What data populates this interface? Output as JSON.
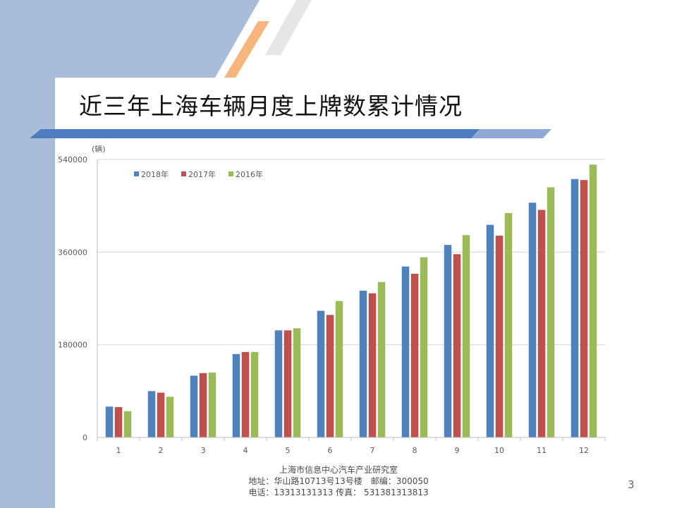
{
  "slide": {
    "title": "近三年上海车辆月度上牌数累计情况",
    "footer": {
      "org": "上海市信息中心汽车产业研究室",
      "address": "地址：华山路10713号13号楼　邮编：300050",
      "contact": "电话：13313131313  传真： 531381313813"
    },
    "page_number": "3"
  },
  "colors": {
    "band": "#a9bcd9",
    "stripe_dark": "#4f7bbf",
    "stripe_light": "#8fa9d6",
    "accent_orange": "#f7b57c",
    "accent_gray": "#e6e6e6"
  },
  "chart_data": {
    "type": "bar",
    "unit_label": "(辆)",
    "categories": [
      "1",
      "2",
      "3",
      "4",
      "5",
      "6",
      "7",
      "8",
      "9",
      "10",
      "11",
      "12"
    ],
    "series": [
      {
        "name": "2018年",
        "color": "#4f81bd",
        "values": [
          60000,
          90000,
          120000,
          162000,
          208000,
          246000,
          285000,
          332000,
          374000,
          413000,
          456000,
          502000
        ]
      },
      {
        "name": "2017年",
        "color": "#c0504d",
        "values": [
          59000,
          87000,
          125000,
          166000,
          208000,
          238000,
          280000,
          318000,
          356000,
          392000,
          442000,
          500000
        ]
      },
      {
        "name": "2016年",
        "color": "#9bbb59",
        "values": [
          51000,
          79000,
          126000,
          166000,
          212000,
          265000,
          302000,
          350000,
          393000,
          436000,
          486000,
          530000
        ]
      }
    ],
    "yticks": [
      "0",
      "180000",
      "360000",
      "540000"
    ],
    "ylim": [
      0,
      540000
    ],
    "legend_position": "top-left",
    "grid": true
  }
}
